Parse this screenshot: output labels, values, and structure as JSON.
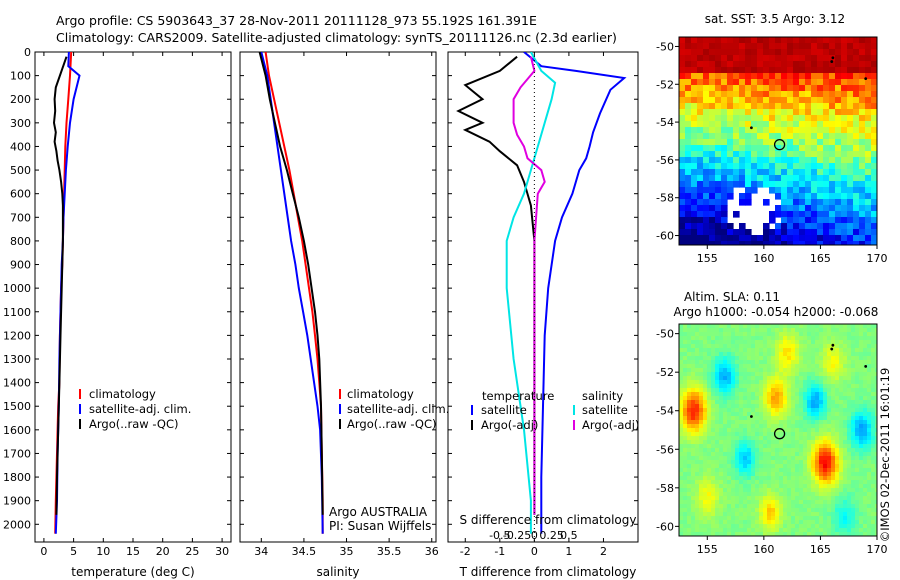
{
  "header": {
    "line1": "Argo profile: CS 5903643_37 28-Nov-2011 20111128_973 55.192S 161.391E",
    "line2": "Climatology: CARS2009. Satellite-adjusted climatology: synTS_20111126.nc (2.3d earlier)"
  },
  "side_label": "©IMOS 02-Dec-2011 16:01:19",
  "colors": {
    "climatology": "#ff0000",
    "satellite": "#0000ff",
    "argo": "#000000",
    "cyan": "#00e5e5",
    "magenta": "#e000e0"
  },
  "chart_data": [
    {
      "type": "line",
      "xlabel": "temperature (deg C)",
      "ylabel": "",
      "xlim": [
        -1.5,
        31.5
      ],
      "ylim": [
        2075,
        0
      ],
      "xticks": [
        0,
        5,
        10,
        15,
        20,
        25,
        30
      ],
      "yticks": [
        0,
        100,
        200,
        300,
        400,
        500,
        600,
        700,
        800,
        900,
        1000,
        1100,
        1200,
        1300,
        1400,
        1500,
        1600,
        1700,
        1800,
        1900,
        2000
      ],
      "legend": [
        "climatology",
        "satellite-adj. clim.",
        "Argo(..raw -QC)"
      ],
      "series": [
        {
          "name": "climatology",
          "color": "#ff0000",
          "x": [
            4.6,
            4.4,
            4.1,
            3.8,
            3.6,
            3.5,
            3.4,
            3.3,
            3.2,
            3.1,
            2.9,
            2.7,
            2.6,
            2.4,
            2.3,
            2.1,
            2.0,
            1.9
          ],
          "y": [
            0,
            100,
            200,
            300,
            400,
            500,
            600,
            700,
            800,
            900,
            1000,
            1200,
            1400,
            1500,
            1600,
            1800,
            1900,
            2040
          ]
        },
        {
          "name": "satellite-adj. clim.",
          "color": "#0000ff",
          "x": [
            4.2,
            4.1,
            6.0,
            5.0,
            4.4,
            4.0,
            3.7,
            3.5,
            3.3,
            3.2,
            3.0,
            2.8,
            2.6,
            2.5,
            2.3,
            2.2,
            2.0
          ],
          "y": [
            0,
            60,
            100,
            200,
            300,
            400,
            500,
            600,
            700,
            800,
            900,
            1100,
            1300,
            1500,
            1700,
            1900,
            2040
          ]
        },
        {
          "name": "Argo(..raw -QC)",
          "color": "#000000",
          "x": [
            3.8,
            2.0,
            1.8,
            1.9,
            1.7,
            2.0,
            1.8,
            2.1,
            2.3,
            2.6,
            2.9,
            3.1,
            3.2,
            3.2,
            3.2,
            3.1,
            3.0,
            2.8,
            2.6,
            2.4,
            2.2,
            2.1
          ],
          "y": [
            20,
            150,
            200,
            250,
            300,
            340,
            380,
            420,
            460,
            500,
            550,
            600,
            650,
            700,
            800,
            900,
            1000,
            1200,
            1400,
            1600,
            1800,
            1960
          ]
        }
      ],
      "annotations": []
    },
    {
      "type": "line",
      "xlabel": "salinity",
      "xlim": [
        33.75,
        36.05
      ],
      "ylim": [
        2075,
        0
      ],
      "xticks": [
        34,
        34.5,
        35,
        35.5,
        36
      ],
      "legend": [
        "climatology",
        "satellite-adj. clim.",
        "Argo(..raw -QC)"
      ],
      "series": [
        {
          "name": "climatology",
          "color": "#ff0000",
          "x": [
            34.05,
            34.09,
            34.15,
            34.21,
            34.27,
            34.33,
            34.38,
            34.43,
            34.48,
            34.52,
            34.56,
            34.6,
            34.63,
            34.66,
            34.68,
            34.7,
            34.71,
            34.72,
            34.72
          ],
          "y": [
            0,
            100,
            200,
            300,
            400,
            500,
            600,
            700,
            800,
            900,
            1000,
            1100,
            1200,
            1300,
            1400,
            1500,
            1700,
            1900,
            2040
          ]
        },
        {
          "name": "satellite-adj. clim.",
          "color": "#0000ff",
          "x": [
            34.0,
            34.07,
            34.11,
            34.15,
            34.19,
            34.23,
            34.27,
            34.31,
            34.35,
            34.4,
            34.44,
            34.49,
            34.54,
            34.58,
            34.62,
            34.66,
            34.69,
            34.71,
            34.72
          ],
          "y": [
            0,
            100,
            200,
            300,
            400,
            500,
            600,
            700,
            800,
            900,
            1000,
            1100,
            1200,
            1300,
            1400,
            1500,
            1600,
            1800,
            2040
          ]
        },
        {
          "name": "Argo(..raw -QC)",
          "color": "#000000",
          "x": [
            33.98,
            34.05,
            34.1,
            34.16,
            34.22,
            34.3,
            34.37,
            34.44,
            34.5,
            34.55,
            34.59,
            34.63,
            34.66,
            34.68,
            34.7,
            34.71,
            34.72
          ],
          "y": [
            0,
            100,
            200,
            300,
            400,
            500,
            600,
            700,
            800,
            900,
            1000,
            1100,
            1200,
            1300,
            1500,
            1700,
            1960
          ]
        }
      ],
      "annotations": [
        "Argo AUSTRALIA",
        "PI: Susan Wijffels"
      ]
    },
    {
      "type": "line",
      "xlabel": "T difference from climatology",
      "xlabel_top": "S difference from climatology",
      "xlim": [
        -2.5,
        3.0
      ],
      "ylim": [
        2075,
        0
      ],
      "xticks_T": [
        -2,
        -1,
        0,
        1,
        2
      ],
      "xticks_S": [
        -0.5,
        -0.25,
        0,
        0.25,
        0.5
      ],
      "legend_left_title": "temperature",
      "legend_right_title": "salinity",
      "legend": [
        "satellite",
        "Argo(-adj)",
        "satellite",
        "Argo(-adj)"
      ],
      "series": [
        {
          "name": "satellite",
          "quantity": "temperature",
          "color": "#0000ff",
          "x": [
            -0.3,
            0.2,
            1.2,
            2.6,
            2.2,
            1.9,
            1.7,
            1.6,
            1.5,
            1.3,
            1.1,
            0.8,
            0.6,
            0.4,
            0.3,
            0.25,
            0.2,
            0.2
          ],
          "y": [
            0,
            60,
            80,
            110,
            160,
            260,
            340,
            400,
            450,
            500,
            600,
            700,
            800,
            1000,
            1200,
            1500,
            1800,
            2040
          ]
        },
        {
          "name": "Argo(-adj)",
          "quantity": "temperature",
          "color": "#000000",
          "x": [
            -0.5,
            -1.0,
            -2.0,
            -1.5,
            -2.2,
            -1.5,
            -2.0,
            -1.3,
            -1.0,
            -0.5,
            -0.3,
            -0.1,
            0.0,
            0.0,
            0.0,
            0.0
          ],
          "y": [
            20,
            80,
            140,
            200,
            250,
            300,
            330,
            380,
            420,
            480,
            550,
            650,
            800,
            1200,
            1600,
            1960
          ]
        },
        {
          "name": "satellite",
          "quantity": "salinity",
          "color": "#00e5e5",
          "x": [
            -0.1,
            0.2,
            0.6,
            0.5,
            0.3,
            0.1,
            -0.1,
            -0.3,
            -0.6,
            -0.8,
            -0.8,
            -0.6,
            -0.3,
            -0.1,
            -0.1
          ],
          "y": [
            0,
            80,
            130,
            200,
            300,
            400,
            500,
            600,
            700,
            800,
            1000,
            1300,
            1600,
            1900,
            2040
          ]
        },
        {
          "name": "Argo(-adj)",
          "quantity": "salinity",
          "color": "#e000e0",
          "x": [
            -0.1,
            0.0,
            -0.4,
            -0.6,
            -0.6,
            -0.5,
            -0.3,
            -0.2,
            0.2,
            0.3,
            0.1,
            0.0,
            0.0
          ],
          "y": [
            20,
            80,
            150,
            200,
            300,
            350,
            400,
            450,
            500,
            550,
            600,
            800,
            1960
          ]
        }
      ],
      "annotations": []
    },
    {
      "type": "heatmap",
      "title": "sat. SST: 3.5 Argo: 3.12",
      "xlim": [
        152.5,
        170
      ],
      "ylim": [
        -60.5,
        -49.5
      ],
      "xticks": [
        155,
        160,
        165,
        170
      ],
      "yticks": [
        -50,
        -52,
        -54,
        -56,
        -58,
        -60
      ],
      "marker": {
        "lon": 161.391,
        "lat": -55.192
      },
      "colormap": "jet"
    },
    {
      "type": "heatmap",
      "title": "Altim. SLA: 0.11",
      "subtitle": "Argo h1000: -0.054 h2000: -0.068",
      "xlim": [
        152.5,
        170
      ],
      "ylim": [
        -60.5,
        -49.5
      ],
      "xticks": [
        155,
        160,
        165,
        170
      ],
      "yticks": [
        -50,
        -52,
        -54,
        -56,
        -58,
        -60
      ],
      "marker": {
        "lon": 161.391,
        "lat": -55.192
      },
      "colormap": "jet"
    }
  ]
}
